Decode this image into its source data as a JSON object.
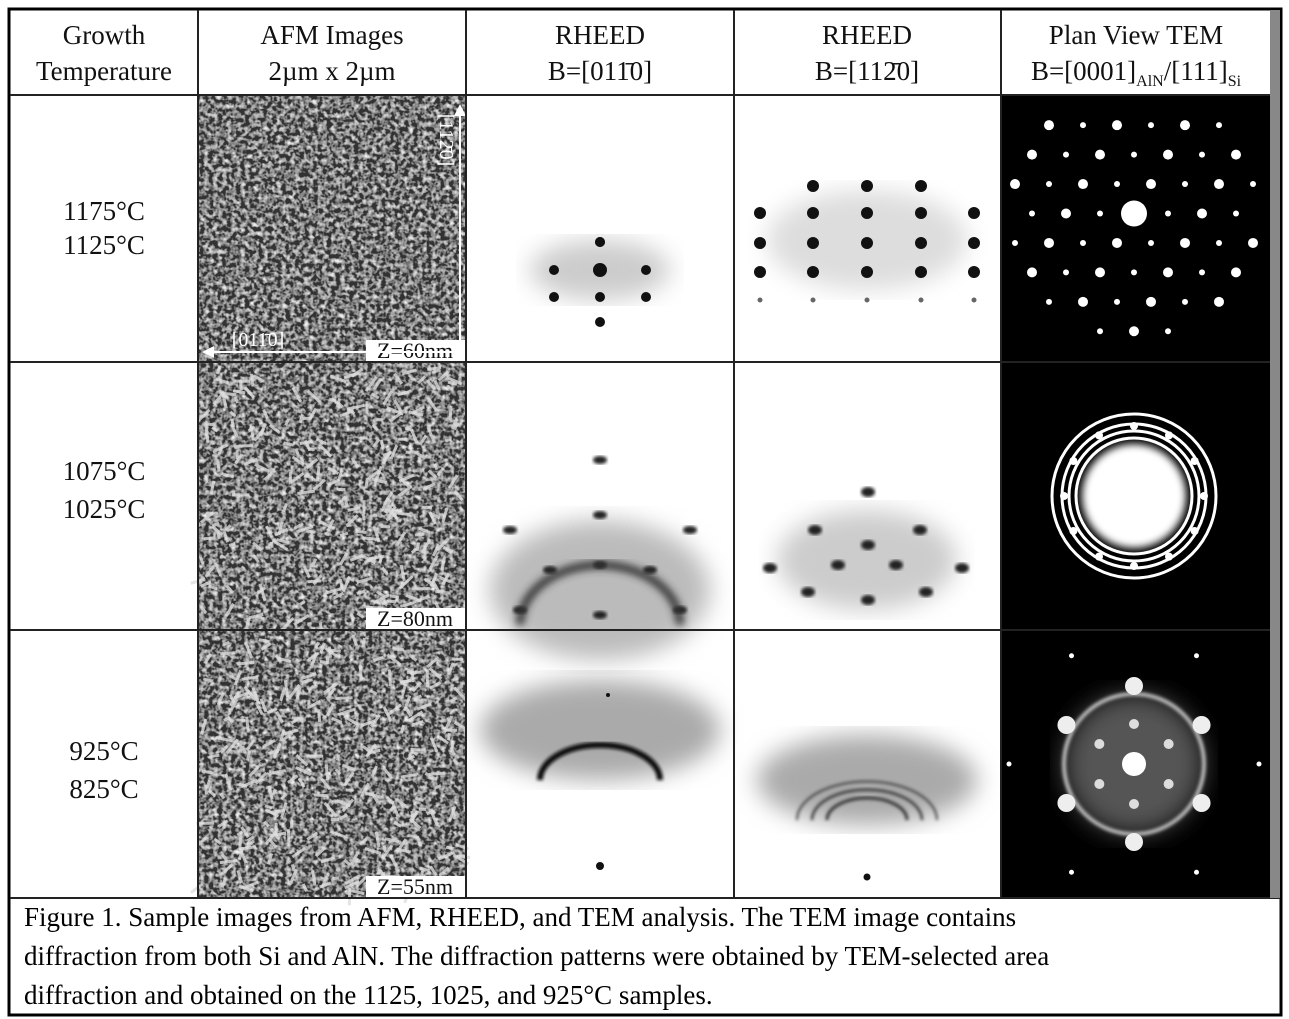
{
  "table": {
    "header": [
      {
        "line1": "Growth",
        "line2": "Temperature"
      },
      {
        "line1": "AFM Images",
        "line2": "2µm x 2µm"
      },
      {
        "line1": "RHEED",
        "line2": "B=[011̄0]"
      },
      {
        "line1": "RHEED",
        "line2": "B=[112̄0]"
      },
      {
        "line1": "Plan View TEM",
        "line2": {
          "main": "B=[0001]",
          "sub1": "AlN",
          "mid": "/[111]",
          "sub2": "Si"
        }
      }
    ],
    "rows": [
      {
        "temperatures": [
          "1175°C",
          "1125°C"
        ],
        "afm_scale": "Z=60nm"
      },
      {
        "temperatures": [
          "1075°C",
          "1025°C"
        ],
        "afm_scale": "Z=80nm"
      },
      {
        "temperatures": [
          "925°C",
          "825°C"
        ],
        "afm_scale": "Z=55nm"
      }
    ],
    "afm_axes": {
      "vertical": "[112̄0]",
      "horizontal": "[011̄0]"
    }
  },
  "caption": {
    "lines": [
      "Figure 1.  Sample images from AFM, RHEED, and TEM analysis.  The TEM image contains",
      "diffraction from both Si and AlN.  The diffraction patterns were obtained by TEM-selected area",
      "diffraction and obtained on the 1125, 1025, and 925°C samples."
    ]
  }
}
